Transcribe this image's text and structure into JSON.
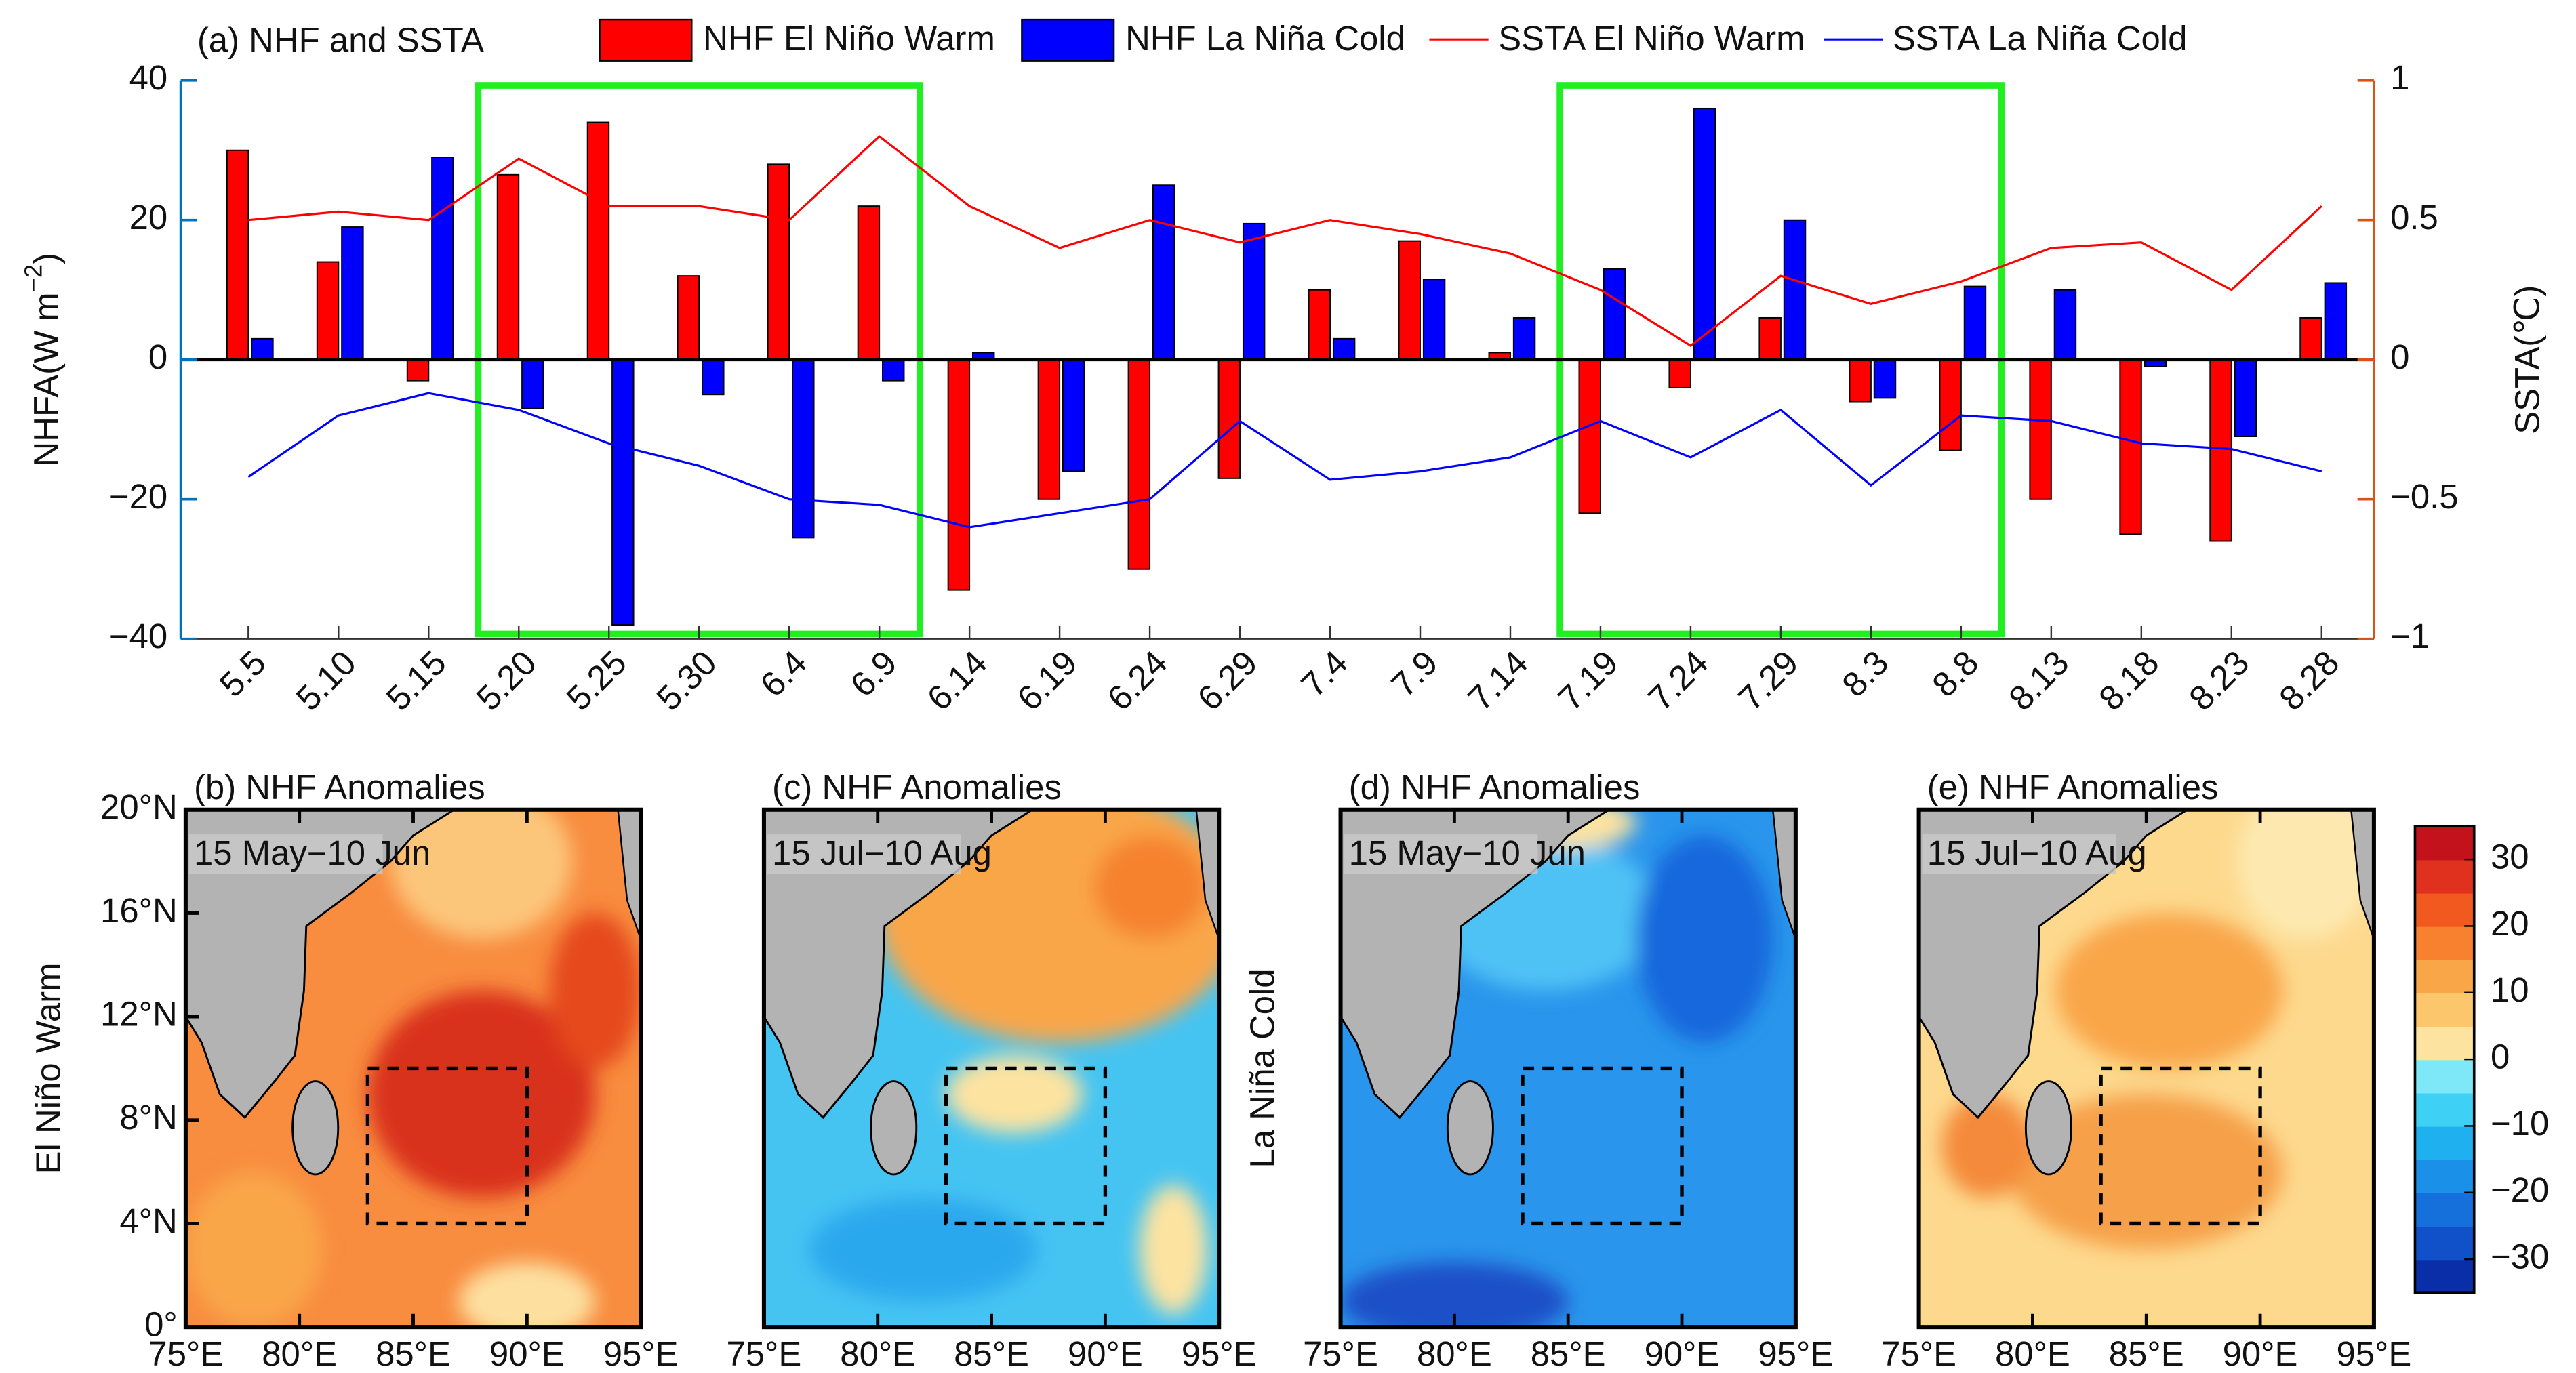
{
  "chart_data": [
    {
      "type": "bar",
      "title": "(a) NHF and SSTA",
      "categories": [
        "5.5",
        "5.10",
        "5.15",
        "5.20",
        "5.25",
        "5.30",
        "6.4",
        "6.9",
        "6.14",
        "6.19",
        "6.24",
        "6.29",
        "7.4",
        "7.9",
        "7.14",
        "7.19",
        "7.24",
        "7.29",
        "8.3",
        "8.8",
        "8.13",
        "8.18",
        "8.23",
        "8.28"
      ],
      "series": [
        {
          "name": "NHF El Niño Warm",
          "type": "bar",
          "color": "#ff0000",
          "values": [
            30,
            14,
            -3,
            26.5,
            34,
            12,
            28,
            22,
            -33,
            -20,
            -30,
            -17,
            10,
            17,
            1,
            -22,
            -4,
            6,
            -6,
            -13,
            -20,
            -25,
            -26,
            6
          ]
        },
        {
          "name": "NHF La Niña Cold",
          "type": "bar",
          "color": "#0000ff",
          "values": [
            3,
            19,
            29,
            -7,
            -38,
            -5,
            -25.5,
            -3,
            1,
            -16,
            25,
            19.5,
            3,
            11.5,
            6,
            13,
            36,
            20,
            -5.5,
            10.5,
            10,
            -1,
            -11,
            11
          ]
        },
        {
          "name": "SSTA El Niño Warm",
          "type": "line",
          "axis": "y2",
          "color": "#ff0000",
          "values": [
            0.5,
            0.53,
            0.5,
            0.72,
            0.55,
            0.55,
            0.5,
            0.8,
            0.55,
            0.4,
            0.5,
            0.42,
            0.5,
            0.45,
            0.38,
            0.25,
            0.05,
            0.3,
            0.2,
            0.28,
            0.4,
            0.42,
            0.25,
            0.55
          ]
        },
        {
          "name": "SSTA La Niña Cold",
          "type": "line",
          "axis": "y2",
          "color": "#0000ff",
          "values": [
            -0.42,
            -0.2,
            -0.12,
            -0.18,
            -0.3,
            -0.38,
            -0.5,
            -0.52,
            -0.6,
            -0.55,
            -0.5,
            -0.22,
            -0.43,
            -0.4,
            -0.35,
            -0.22,
            -0.35,
            -0.18,
            -0.45,
            -0.2,
            -0.22,
            -0.3,
            -0.32,
            -0.4
          ]
        }
      ],
      "ylim": [
        -40,
        40
      ],
      "yticks": [
        {
          "value": -40,
          "label": "−40"
        },
        {
          "value": -20,
          "label": "−20"
        },
        0,
        20,
        40
      ],
      "y2lim": [
        -1,
        1
      ],
      "y2ticks": [
        {
          "value": -1,
          "label": "−1"
        },
        {
          "value": -0.5,
          "label": "−0.5"
        },
        0,
        0.5,
        1
      ],
      "y_label": [
        "NHFA(W m",
        "−2",
        ")"
      ],
      "y2_label": "SSTA(℃)",
      "y_color": "#0072bd",
      "y2_color": "#d95319"
    },
    {
      "type": "map",
      "title": "(b) NHF Anomalies",
      "subtitle": "15 May−10 Jun",
      "ylabel": "El Niño Warm",
      "xlim": [
        75,
        95
      ],
      "ylim": [
        0,
        20
      ],
      "xticks": [
        {
          "value": 75,
          "label": "75°E"
        },
        {
          "value": 80,
          "label": "80°E"
        },
        {
          "value": 85,
          "label": "85°E"
        },
        {
          "value": 90,
          "label": "90°E"
        },
        {
          "value": 95,
          "label": "95°E"
        }
      ],
      "yticks": [
        {
          "value": 0,
          "label": "0°"
        },
        {
          "value": 4,
          "label": "4°N"
        },
        {
          "value": 8,
          "label": "8°N"
        },
        {
          "value": 12,
          "label": "12°N"
        },
        {
          "value": 16,
          "label": "16°N"
        },
        {
          "value": 20,
          "label": "20°N"
        }
      ]
    },
    {
      "type": "map",
      "title": "(c) NHF Anomalies",
      "subtitle": "15 Jul−10 Aug",
      "xlim": [
        75,
        95
      ],
      "ylim": [
        0,
        20
      ],
      "xticks": [
        {
          "value": 75,
          "label": "75°E"
        },
        {
          "value": 80,
          "label": "80°E"
        },
        {
          "value": 85,
          "label": "85°E"
        },
        {
          "value": 90,
          "label": "90°E"
        },
        {
          "value": 95,
          "label": "95°E"
        }
      ]
    },
    {
      "type": "map",
      "title": "(d) NHF Anomalies",
      "subtitle": "15 May−10 Jun",
      "ylabel": "La Niña Cold",
      "xlim": [
        75,
        95
      ],
      "ylim": [
        0,
        20
      ],
      "xticks": [
        {
          "value": 75,
          "label": "75°E"
        },
        {
          "value": 80,
          "label": "80°E"
        },
        {
          "value": 85,
          "label": "85°E"
        },
        {
          "value": 90,
          "label": "90°E"
        },
        {
          "value": 95,
          "label": "95°E"
        }
      ]
    },
    {
      "type": "map",
      "title": "(e) NHF Anomalies",
      "subtitle": "15 Jul−10 Aug",
      "xlim": [
        75,
        95
      ],
      "ylim": [
        0,
        20
      ],
      "xticks": [
        {
          "value": 75,
          "label": "75°E"
        },
        {
          "value": 80,
          "label": "80°E"
        },
        {
          "value": 85,
          "label": "85°E"
        },
        {
          "value": 90,
          "label": "90°E"
        },
        {
          "value": 95,
          "label": "95°E"
        }
      ]
    },
    {
      "type": "colorbar",
      "ylim": [
        -35,
        35
      ],
      "yticks": [
        {
          "value": -30,
          "label": "−30"
        },
        {
          "value": -20,
          "label": "−20"
        },
        {
          "value": -10,
          "label": "−10"
        },
        0,
        10,
        20,
        30
      ],
      "colors": [
        "#0a2ea8",
        "#1050c8",
        "#1670dc",
        "#1a90e8",
        "#1fb0f0",
        "#3fd0f5",
        "#7ee8f8",
        "#fde3a0",
        "#fcc66d",
        "#f9a649",
        "#f7812f",
        "#f2591f",
        "#e0301e",
        "#c4121c"
      ]
    }
  ]
}
